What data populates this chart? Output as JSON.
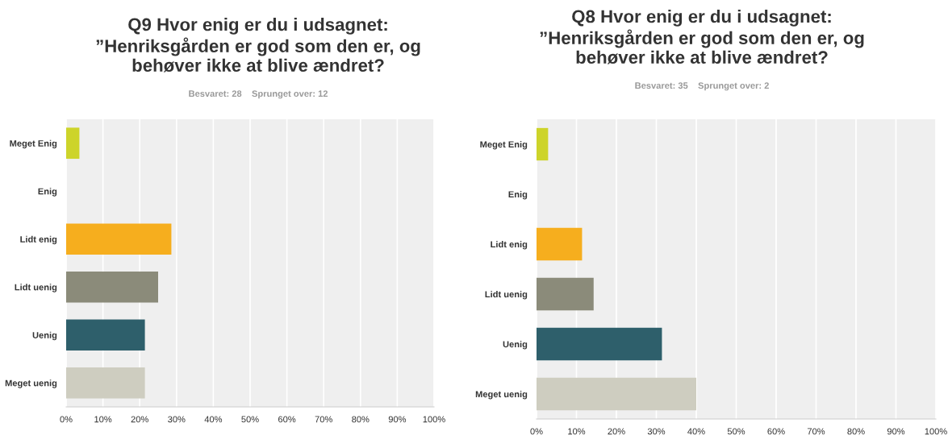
{
  "chart_data": [
    {
      "type": "bar",
      "orientation": "horizontal",
      "title": "Q9 Hvor enig er du i udsagnet:\n”Henriksgården er god som den er, og\nbehøver ikke at blive ændret?",
      "subtitle": "Besvaret: 28    Sprunget over: 12",
      "categories": [
        "Meget Enig",
        "Enig",
        "Lidt enig",
        "Lidt uenig",
        "Uenig",
        "Meget uenig"
      ],
      "values": [
        3.6,
        0,
        28.6,
        25.0,
        21.4,
        21.4
      ],
      "colors": [
        "#cdd42a",
        "#8f9c3a",
        "#f6ae1e",
        "#8b8b7a",
        "#2e5f6b",
        "#cecdc0"
      ],
      "xlim": [
        0,
        100
      ],
      "xticks": [
        {
          "value": 0,
          "label": "0%"
        },
        {
          "value": 10,
          "label": "10%"
        },
        {
          "value": 20,
          "label": "20%"
        },
        {
          "value": 30,
          "label": "30%"
        },
        {
          "value": 40,
          "label": "40%"
        },
        {
          "value": 50,
          "label": "50%"
        },
        {
          "value": 60,
          "label": "60%"
        },
        {
          "value": 70,
          "label": "70%"
        },
        {
          "value": 80,
          "label": "80%"
        },
        {
          "value": 90,
          "label": "90%"
        },
        {
          "value": 100,
          "label": "100%"
        }
      ],
      "grid": "x"
    },
    {
      "type": "bar",
      "orientation": "horizontal",
      "title": "Q8 Hvor enig er du i udsagnet:\n”Henriksgården er god som den er, og\nbehøver ikke at blive ændret?",
      "subtitle": "Besvaret: 35    Sprunget over: 2",
      "categories": [
        "Meget Enig",
        "Enig",
        "Lidt enig",
        "Lidt uenig",
        "Uenig",
        "Meget uenig"
      ],
      "values": [
        2.9,
        0,
        11.4,
        14.3,
        31.4,
        40.0
      ],
      "colors": [
        "#cdd42a",
        "#8f9c3a",
        "#f6ae1e",
        "#8b8b7a",
        "#2e5f6b",
        "#cecdc0"
      ],
      "xlim": [
        0,
        100
      ],
      "xticks": [
        {
          "value": 0,
          "label": "0%"
        },
        {
          "value": 10,
          "label": "10%"
        },
        {
          "value": 20,
          "label": "20%"
        },
        {
          "value": 30,
          "label": "30%"
        },
        {
          "value": 40,
          "label": "40%"
        },
        {
          "value": 50,
          "label": "50%"
        },
        {
          "value": 60,
          "label": "60%"
        },
        {
          "value": 70,
          "label": "70%"
        },
        {
          "value": 80,
          "label": "80%"
        },
        {
          "value": 90,
          "label": "90%"
        },
        {
          "value": 100,
          "label": "100%"
        }
      ],
      "grid": "x"
    }
  ]
}
